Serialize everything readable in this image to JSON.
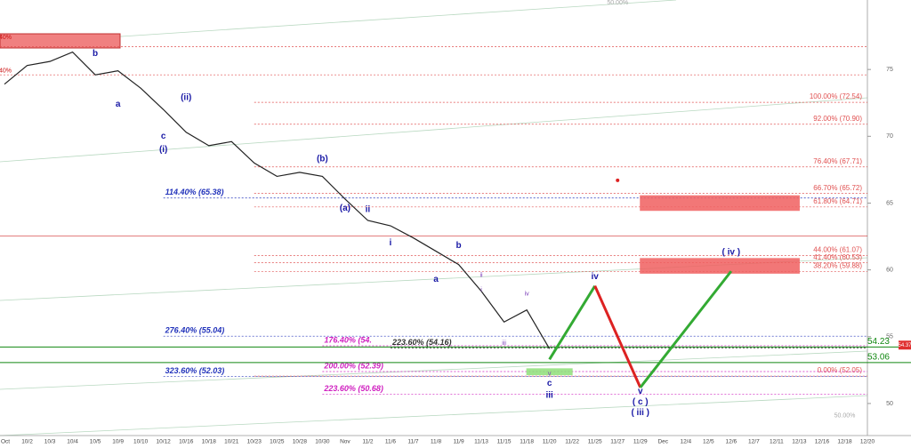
{
  "chart_data": {
    "type": "line",
    "categories": [
      "Oct",
      "10/2",
      "10/3",
      "10/4",
      "10/5",
      "10/9",
      "10/10",
      "10/12",
      "10/16",
      "10/18",
      "10/21",
      "10/23",
      "10/25",
      "10/28",
      "10/30",
      "Nov",
      "11/2",
      "11/6",
      "11/7",
      "11/8",
      "11/9",
      "11/13",
      "11/15",
      "11/18",
      "11/20",
      "11/22",
      "11/25",
      "11/27",
      "11/29",
      "Dec",
      "12/4",
      "12/5",
      "12/6",
      "12/7",
      "12/11",
      "12/13",
      "12/16",
      "12/18",
      "12/20"
    ],
    "series": [
      {
        "color": "#222222",
        "values": [
          73.9,
          75.3,
          75.6,
          76.3,
          74.6,
          74.9,
          73.6,
          72,
          70.3,
          69.3,
          69.6,
          68,
          67,
          67.3,
          67,
          65.3,
          63.7,
          63.3,
          62.4,
          61.4,
          60.4,
          58.4,
          56.1,
          57,
          54.1,
          null,
          null,
          null,
          null,
          null,
          null,
          null,
          null,
          null,
          null,
          null,
          null,
          null,
          null
        ]
      }
    ],
    "ylim": [
      47.6,
      80.2
    ],
    "yticks": [
      50,
      55,
      60,
      65,
      70,
      75
    ],
    "levels": [
      {
        "color": "#e05050",
        "from": "10/23",
        "align": "right",
        "items": [
          {
            "label": "100.00% (72.54)",
            "value": 72.54
          },
          {
            "label": "92.00% (70.90)",
            "value": 70.9
          },
          {
            "label": "76.40% (67.71)",
            "value": 67.71
          },
          {
            "label": "66.70% (65.72)",
            "value": 65.72
          },
          {
            "label": "61.80% (64.71)",
            "value": 64.71
          },
          {
            "label": "44.00% (61.07)",
            "value": 61.07
          },
          {
            "label": "41.40% (60.53)",
            "value": 60.53
          },
          {
            "label": "38.20% (59.88)",
            "value": 59.88
          },
          {
            "label": "0.00% (52.05)",
            "value": 52.05
          }
        ]
      },
      {
        "color": "#2233bb",
        "from": "10/12",
        "align": "left",
        "items": [
          {
            "label": "114.40% (65.38)",
            "value": 65.38
          },
          {
            "label": "276.40% (55.04)",
            "value": 55.04
          },
          {
            "label": "323.60% (52.03)",
            "value": 52.03
          }
        ]
      },
      {
        "color": "#d020c0",
        "from": "10/30",
        "align": "left",
        "items": [
          {
            "label": "176.40% (54.",
            "value": 54.32
          },
          {
            "label": "200.00% (52.39)",
            "value": 52.39
          },
          {
            "label": "223.60% (50.68)",
            "value": 50.68
          }
        ]
      },
      {
        "color": "#333333",
        "from": "11/6",
        "align": "left",
        "items": [
          {
            "label": "223.60% (54.16)",
            "value": 54.16
          }
        ]
      }
    ],
    "lines": [
      {
        "value": 76.7,
        "color": "#e05050"
      },
      {
        "value": 74.6,
        "color": "#e05050"
      },
      {
        "value": 62.55,
        "color": "#d03030"
      }
    ],
    "markers": [
      {
        "value": 54.23,
        "color": "#118811"
      },
      {
        "value": 53.06,
        "color": "#118811"
      }
    ],
    "price_tag": {
      "value": 54.37,
      "color": "#e03030"
    },
    "zones": [
      {
        "from": "11/29",
        "to": "12/13",
        "ymin": 64.45,
        "ymax": 65.55,
        "color": "#f06060"
      },
      {
        "from": "11/29",
        "to": "12/13",
        "ymin": 59.75,
        "ymax": 60.85,
        "color": "#f06060"
      },
      {
        "from": "11/18",
        "to": "11/22",
        "ymin": 52.15,
        "ymax": 52.6,
        "color": "#8fe07a"
      }
    ],
    "projection": [
      {
        "color": "#33aa33",
        "from": {
          "x": "11/20",
          "y": 53.3
        },
        "to": {
          "x": "11/25",
          "y": 58.8
        }
      },
      {
        "color": "#dd2222",
        "from": {
          "x": "11/25",
          "y": 58.8
        },
        "to": {
          "x": "11/29",
          "y": 51.2
        }
      },
      {
        "color": "#33aa33",
        "from": {
          "x": "11/29",
          "y": 51.2
        },
        "to": {
          "x": "12/6",
          "y": 59.9
        }
      }
    ],
    "points": [
      {
        "x": "11/27",
        "y": 66.7,
        "color": "#dd2222"
      }
    ],
    "annotations": [
      {
        "text": "b",
        "x": "10/5",
        "y": 76.2,
        "color": "#1a1aa6"
      },
      {
        "text": "a",
        "x": "10/9",
        "y": 72.4,
        "color": "#1a1aa6"
      },
      {
        "text": "c",
        "x": "10/12",
        "y": 70.0,
        "color": "#1a1aa6"
      },
      {
        "text": "(i)",
        "x": "10/12",
        "y": 69.0,
        "color": "#1a1aa6"
      },
      {
        "text": "(ii)",
        "x": "10/16",
        "y": 72.9,
        "color": "#1a1aa6"
      },
      {
        "text": "(b)",
        "x": "10/30",
        "y": 68.3,
        "color": "#1a1aa6"
      },
      {
        "text": "(a)",
        "x": "Nov",
        "y": 64.6,
        "color": "#1a1aa6"
      },
      {
        "text": "ii",
        "x": "11/2",
        "y": 64.5,
        "color": "#1a1aa6"
      },
      {
        "text": "i",
        "x": "11/6",
        "y": 62.0,
        "color": "#1a1aa6"
      },
      {
        "text": "b",
        "x": "11/9",
        "y": 61.8,
        "color": "#1a1aa6"
      },
      {
        "text": "a",
        "x": "11/8",
        "y": 59.3,
        "color": "#1a1aa6"
      },
      {
        "text": "ii",
        "x": "11/13",
        "y": 59.6,
        "color": "#7a3db8"
      },
      {
        "text": "i",
        "x": "11/13",
        "y": 58.5,
        "color": "#7a3db8"
      },
      {
        "text": "iii",
        "x": "11/15",
        "y": 54.5,
        "color": "#7a3db8"
      },
      {
        "text": "iv",
        "x": "11/18",
        "y": 58.2,
        "color": "#7a3db8"
      },
      {
        "text": "v",
        "x": "11/20",
        "y": 52.2,
        "color": "#7a3db8"
      },
      {
        "text": "c",
        "x": "11/20",
        "y": 51.5,
        "color": "#1a1aa6"
      },
      {
        "text": "iii",
        "x": "11/20",
        "y": 50.6,
        "color": "#1a1aa6"
      },
      {
        "text": "iv",
        "x": "11/25",
        "y": 59.5,
        "color": "#1a1aa6"
      },
      {
        "text": "v",
        "x": "11/29",
        "y": 50.9,
        "color": "#1a1aa6"
      },
      {
        "text": "( c )",
        "x": "11/29",
        "y": 50.1,
        "color": "#1a1aa6"
      },
      {
        "text": "( iii )",
        "x": "11/29",
        "y": 49.3,
        "color": "#1a1aa6"
      },
      {
        "text": "( iv )",
        "x": "12/6",
        "y": 61.3,
        "color": "#1a1aa6"
      },
      {
        "text": ".40%",
        "x": "Oct",
        "y": 77.4,
        "color": "#cc1111"
      },
      {
        "text": ".40%",
        "x": "Oct",
        "y": 74.9,
        "color": "#cc1111"
      },
      {
        "text": "50.00%",
        "x": "11/27",
        "y": 80.0,
        "color": "#aaaaaa"
      },
      {
        "text": "50.00%",
        "x": "12/18",
        "y": 49.1,
        "color": "#aaaaaa"
      }
    ]
  }
}
